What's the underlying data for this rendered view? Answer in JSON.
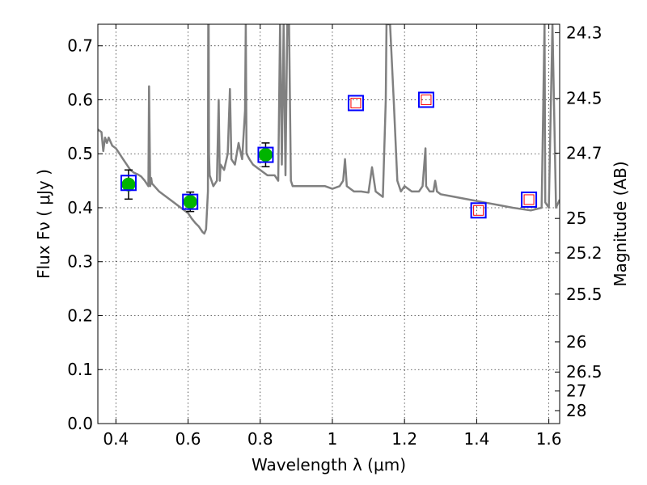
{
  "chart_data": {
    "type": "scatter",
    "xlabel": "Wavelength  λ (μm)",
    "ylabel": "Flux  Fν  ( μJy )",
    "y2label": "Magnitude (AB)",
    "xlim": [
      0.35,
      1.63
    ],
    "ylim": [
      0.0,
      0.74
    ],
    "grid": true,
    "x_ticks": [
      0.4,
      0.6,
      0.8,
      1.0,
      1.2,
      1.4,
      1.6
    ],
    "x_tick_labels": [
      "0.4",
      "0.6",
      "0.8",
      "1",
      "1.2",
      "1.4",
      "1.6"
    ],
    "y_ticks": [
      0.0,
      0.1,
      0.2,
      0.3,
      0.4,
      0.5,
      0.6,
      0.7
    ],
    "y_tick_labels": [
      "0.0",
      "0.1",
      "0.2",
      "0.3",
      "0.4",
      "0.5",
      "0.6",
      "0.7"
    ],
    "y2_ticks": [
      {
        "label": "24.3",
        "flux": 0.7244
      },
      {
        "label": "24.5",
        "flux": 0.6026
      },
      {
        "label": "24.7",
        "flux": 0.5012
      },
      {
        "label": "25",
        "flux": 0.3802
      },
      {
        "label": "25.2",
        "flux": 0.3162
      },
      {
        "label": "25.5",
        "flux": 0.2399
      },
      {
        "label": "26",
        "flux": 0.1514
      },
      {
        "label": "26.5",
        "flux": 0.0955
      },
      {
        "label": "27",
        "flux": 0.0603
      },
      {
        "label": "28",
        "flux": 0.024
      }
    ],
    "series": [
      {
        "type": "line",
        "color": "#808080",
        "x": [
          0.35,
          0.36,
          0.365,
          0.37,
          0.375,
          0.38,
          0.39,
          0.4,
          0.41,
          0.42,
          0.43,
          0.44,
          0.45,
          0.46,
          0.47,
          0.48,
          0.49,
          0.492,
          0.495,
          0.498,
          0.5,
          0.52,
          0.54,
          0.56,
          0.58,
          0.6,
          0.61,
          0.62,
          0.63,
          0.64,
          0.645,
          0.65,
          0.655,
          0.656,
          0.657,
          0.658,
          0.66,
          0.67,
          0.68,
          0.685,
          0.688,
          0.69,
          0.7,
          0.71,
          0.716,
          0.72,
          0.73,
          0.74,
          0.75,
          0.758,
          0.76,
          0.762,
          0.77,
          0.78,
          0.8,
          0.82,
          0.84,
          0.85,
          0.855,
          0.86,
          0.865,
          0.87,
          0.875,
          0.88,
          0.885,
          0.89,
          0.9,
          0.92,
          0.94,
          0.96,
          0.98,
          1.0,
          1.02,
          1.03,
          1.035,
          1.04,
          1.05,
          1.06,
          1.08,
          1.1,
          1.11,
          1.12,
          1.14,
          1.148,
          1.15,
          1.16,
          1.17,
          1.18,
          1.19,
          1.2,
          1.22,
          1.24,
          1.25,
          1.258,
          1.26,
          1.27,
          1.28,
          1.285,
          1.29,
          1.3,
          1.34,
          1.38,
          1.42,
          1.46,
          1.5,
          1.55,
          1.58,
          1.588,
          1.59,
          1.6,
          1.61,
          1.62,
          1.63
        ],
        "y": [
          0.545,
          0.54,
          0.505,
          0.53,
          0.52,
          0.53,
          0.515,
          0.51,
          0.5,
          0.49,
          0.48,
          0.47,
          0.465,
          0.462,
          0.458,
          0.45,
          0.44,
          0.625,
          0.44,
          0.455,
          0.445,
          0.43,
          0.42,
          0.41,
          0.4,
          0.39,
          0.38,
          0.372,
          0.365,
          0.355,
          0.352,
          0.36,
          0.43,
          0.74,
          0.74,
          0.5,
          0.46,
          0.44,
          0.45,
          0.6,
          0.45,
          0.48,
          0.47,
          0.5,
          0.62,
          0.49,
          0.48,
          0.52,
          0.49,
          0.58,
          0.74,
          0.5,
          0.49,
          0.48,
          0.47,
          0.46,
          0.46,
          0.45,
          0.74,
          0.48,
          0.74,
          0.46,
          0.74,
          0.74,
          0.45,
          0.44,
          0.44,
          0.44,
          0.44,
          0.44,
          0.44,
          0.435,
          0.44,
          0.45,
          0.49,
          0.44,
          0.435,
          0.43,
          0.43,
          0.428,
          0.475,
          0.43,
          0.42,
          0.6,
          0.74,
          0.74,
          0.6,
          0.45,
          0.43,
          0.44,
          0.43,
          0.43,
          0.44,
          0.51,
          0.44,
          0.43,
          0.43,
          0.45,
          0.43,
          0.425,
          0.42,
          0.415,
          0.41,
          0.405,
          0.4,
          0.395,
          0.4,
          0.74,
          0.41,
          0.4,
          0.74,
          0.4,
          0.415
        ]
      },
      {
        "type": "errorbar",
        "marker": "circle",
        "color": "#00b400",
        "x": [
          0.435,
          0.606,
          0.815
        ],
        "y": [
          0.443,
          0.411,
          0.498
        ],
        "yerr": [
          0.027,
          0.018,
          0.022
        ]
      },
      {
        "type": "scatter",
        "marker": "square-open",
        "color": "#0000ff",
        "x": [
          0.435,
          0.606,
          0.815,
          1.065,
          1.26,
          1.405,
          1.545
        ],
        "y": [
          0.446,
          0.411,
          0.498,
          0.594,
          0.6,
          0.395,
          0.415
        ]
      },
      {
        "type": "scatter",
        "marker": "square-open-small",
        "color": "#ff0000",
        "x": [
          1.065,
          1.26,
          1.405,
          1.545
        ],
        "y": [
          0.594,
          0.6,
          0.395,
          0.415
        ]
      }
    ]
  }
}
